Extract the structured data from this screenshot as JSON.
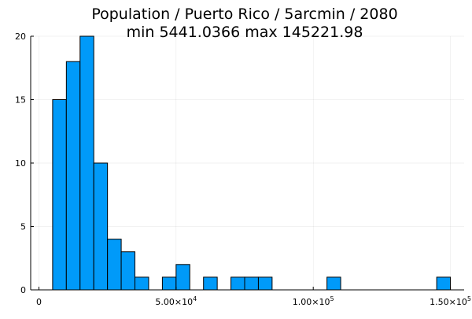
{
  "chart_data": {
    "type": "bar",
    "title": "Population / Puerto Rico / 5arcmin / 2080",
    "subtitle": "min 5441.0366  max 145221.98",
    "bin_width": 5000,
    "bins": [
      {
        "start": 5000,
        "end": 10000,
        "count": 15
      },
      {
        "start": 10000,
        "end": 15000,
        "count": 18
      },
      {
        "start": 15000,
        "end": 20000,
        "count": 20
      },
      {
        "start": 20000,
        "end": 25000,
        "count": 10
      },
      {
        "start": 25000,
        "end": 30000,
        "count": 4
      },
      {
        "start": 30000,
        "end": 35000,
        "count": 3
      },
      {
        "start": 35000,
        "end": 40000,
        "count": 1
      },
      {
        "start": 45000,
        "end": 50000,
        "count": 1
      },
      {
        "start": 50000,
        "end": 55000,
        "count": 2
      },
      {
        "start": 60000,
        "end": 65000,
        "count": 1
      },
      {
        "start": 70000,
        "end": 75000,
        "count": 1
      },
      {
        "start": 75000,
        "end": 80000,
        "count": 1
      },
      {
        "start": 80000,
        "end": 85000,
        "count": 1
      },
      {
        "start": 105000,
        "end": 110000,
        "count": 1
      },
      {
        "start": 145000,
        "end": 150000,
        "count": 1
      }
    ],
    "xlim": [
      -3000,
      155000
    ],
    "ylim": [
      0,
      20
    ],
    "x_ticks": [
      {
        "value": 0,
        "mantissa": "0",
        "exponent": ""
      },
      {
        "value": 50000,
        "mantissa": "5.00×10",
        "exponent": "4"
      },
      {
        "value": 100000,
        "mantissa": "1.00×10",
        "exponent": "5"
      },
      {
        "value": 150000,
        "mantissa": "1.50×10",
        "exponent": "5"
      }
    ],
    "y_ticks": [
      0,
      5,
      10,
      15,
      20
    ],
    "bar_color": "#009af9",
    "grid": true,
    "legend": false
  }
}
